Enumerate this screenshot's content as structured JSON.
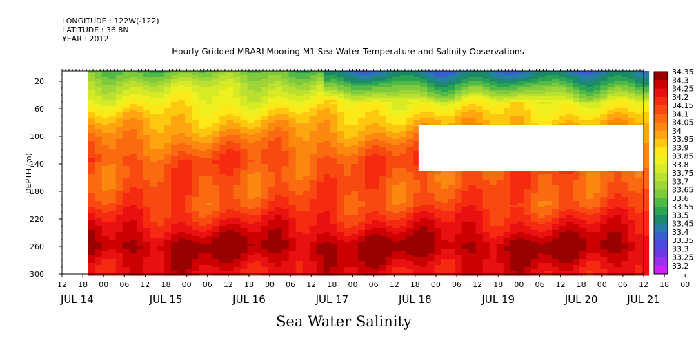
{
  "header": {
    "longitude": "LONGITUDE : 122W(-122)",
    "latitude": "LATITUDE : 36.8N",
    "year": "YEAR : 2012",
    "title": "Hourly Gridded MBARI Mooring M1 Sea Water Temperature and Salinity Observations"
  },
  "chart_data": {
    "type": "heatmap",
    "title": "Hourly Gridded MBARI Mooring M1 Sea Water Temperature and Salinity Observations",
    "xlabel": "Sea Water Salinity",
    "ylabel": "DEPTH (m)",
    "y_ticks": [
      "20",
      "60",
      "100",
      "140",
      "180",
      "220",
      "260",
      "300"
    ],
    "y_range": [
      5,
      300
    ],
    "x_hour_labels": [
      "12",
      "18",
      "00",
      "06",
      "12",
      "18",
      "00",
      "06",
      "12",
      "18",
      "00",
      "06",
      "12",
      "18",
      "00",
      "06",
      "12",
      "18",
      "00",
      "06",
      "12",
      "18",
      "00",
      "06",
      "12",
      "18",
      "00",
      "06",
      "12",
      "18",
      "00",
      "06",
      "12"
    ],
    "x_date_labels": [
      "JUL 14",
      "JUL 15",
      "JUL 16",
      "JUL 17",
      "JUL 18",
      "JUL 19",
      "JUL 20",
      "JUL 21"
    ],
    "x_range_hours": [
      12,
      180
    ],
    "data_start_hour": 19.5,
    "missing_block": {
      "x_hours": [
        115,
        180
      ],
      "depth": [
        83,
        150
      ]
    },
    "colorbar_levels": [
      "34.35",
      "34.3",
      "34.25",
      "34.2",
      "34.15",
      "34.1",
      "34.05",
      "34",
      "33.95",
      "33.9",
      "33.85",
      "33.8",
      "33.75",
      "33.7",
      "33.65",
      "33.6",
      "33.55",
      "33.5",
      "33.45",
      "33.4",
      "33.35",
      "33.3",
      "33.25",
      "33.2"
    ],
    "colorbar_colors": [
      "#990000",
      "#cc0000",
      "#e81010",
      "#f52a10",
      "#f84a10",
      "#fa6a10",
      "#fc8810",
      "#fea510",
      "#ffc810",
      "#ffe818",
      "#eef020",
      "#d6ea25",
      "#bce030",
      "#9fd536",
      "#7fc93c",
      "#52b848",
      "#2aa352",
      "#1c8a6a",
      "#257fa0",
      "#3a5fd0",
      "#4d4ae0",
      "#6a3ae8",
      "#9a30f0",
      "#cc22f5"
    ],
    "profile_depth": [
      5,
      30,
      55,
      80,
      110,
      135,
      160,
      200,
      240,
      260,
      280,
      300
    ],
    "profile_salinity": [
      33.6,
      33.75,
      33.85,
      33.95,
      34.05,
      34.12,
      34.1,
      34.12,
      34.25,
      34.32,
      34.27,
      34.22
    ],
    "shallow_phase_change_hour": 86,
    "shallow_salinity_after": 33.4
  }
}
